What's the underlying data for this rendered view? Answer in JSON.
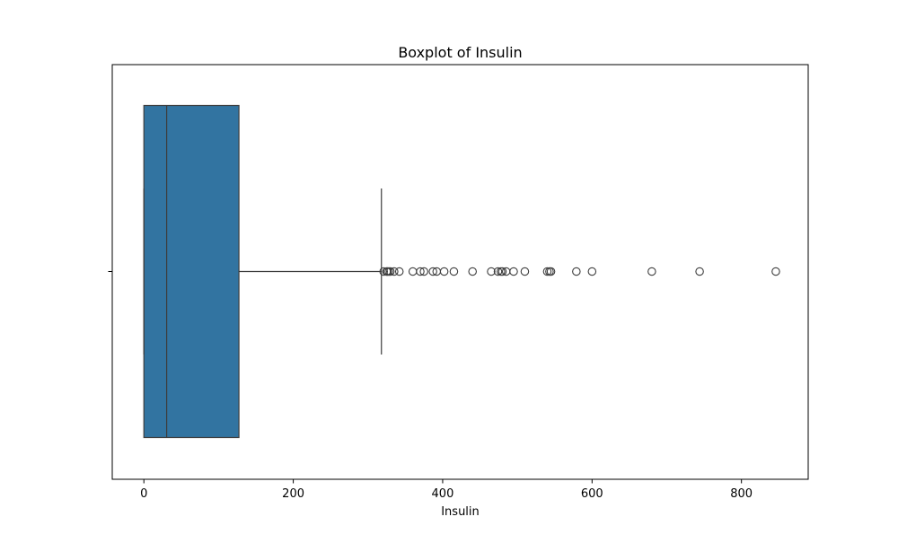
{
  "chart_data": {
    "type": "boxplot",
    "orientation": "horizontal",
    "title": "Boxplot of Insulin",
    "xlabel": "Insulin",
    "ylabel": "",
    "xlim": [
      -42.35,
      889.35
    ],
    "xticks": [
      0,
      200,
      400,
      600,
      800
    ],
    "xtick_labels": [
      "0",
      "200",
      "400",
      "600",
      "800"
    ],
    "grid": false,
    "box_color": "#3274a1",
    "line_color": "#3d3d3d",
    "box": {
      "whisker_low": 0,
      "q1": 0,
      "median": 30.5,
      "q3": 127.25,
      "whisker_high": 318
    },
    "outliers": [
      321,
      325,
      326,
      328,
      330,
      335,
      342,
      360,
      370,
      375,
      387,
      392,
      402,
      415,
      440,
      465,
      474,
      478,
      480,
      485,
      495,
      510,
      540,
      543,
      545,
      579,
      600,
      680,
      744,
      846
    ]
  }
}
